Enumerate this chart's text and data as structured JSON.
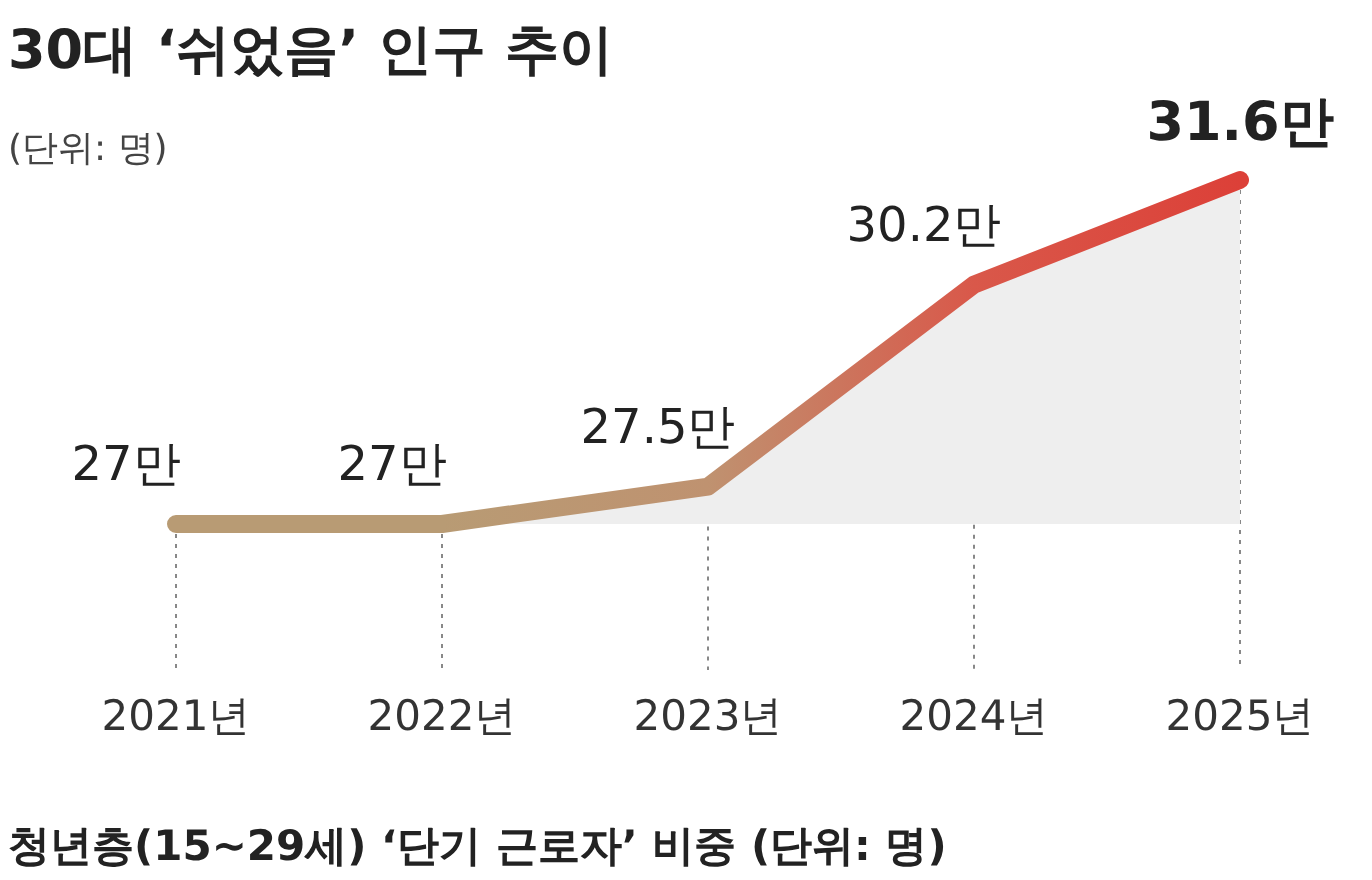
{
  "chart_data": {
    "type": "area",
    "title": "30대 ‘쉬었음’ 인구 추이",
    "subtitle": "(단위: 명)",
    "categories": [
      "2021년",
      "2022년",
      "2023년",
      "2024년",
      "2025년"
    ],
    "values": [
      27,
      27,
      27.5,
      30.2,
      31.6
    ],
    "value_labels": [
      "27만",
      "27만",
      "27.5만",
      "30.2만",
      "31.6만"
    ],
    "colors": [
      "#b89b74",
      "#b89b74",
      "#bf9270",
      "#d9584a",
      "#dc4038"
    ],
    "line_style": "solid",
    "annotations": [
      "청년층(15~29세) ‘단기 근로자’ 비중 (단위: 명)"
    ]
  }
}
